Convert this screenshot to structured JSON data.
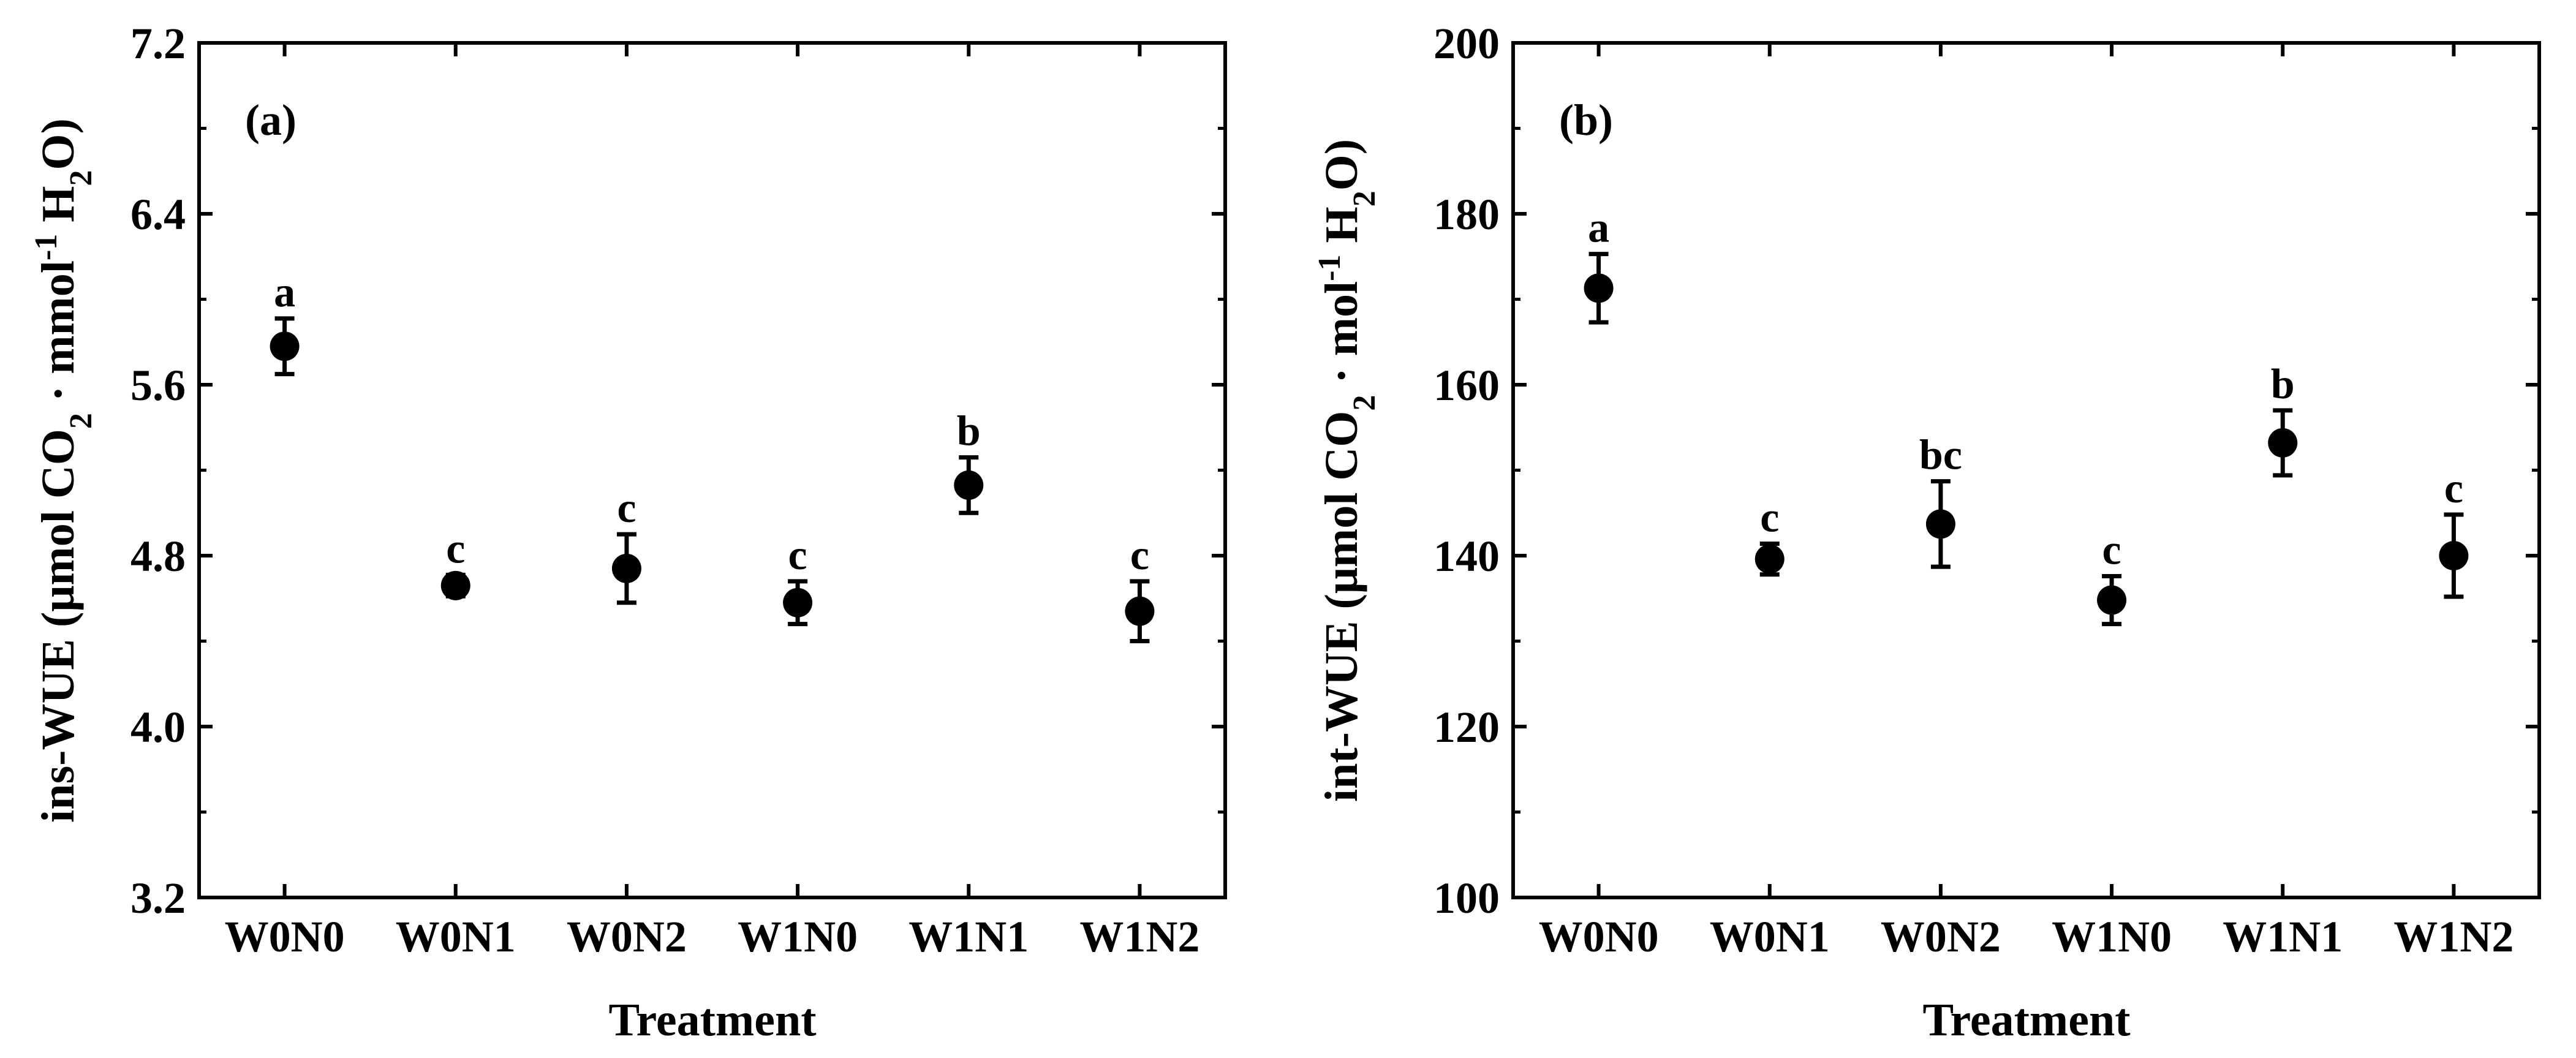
{
  "chart_data": [
    {
      "type": "scatter",
      "panel_label": "(a)",
      "xlabel": "Treatment",
      "ylabel_parts": [
        "ins-WUE (μmol CO",
        "2",
        " · mmol",
        "-1",
        " H",
        "2",
        "O)"
      ],
      "categories": [
        "W0N0",
        "W0N1",
        "W0N2",
        "W1N0",
        "W1N1",
        "W1N2"
      ],
      "values": [
        5.78,
        4.66,
        4.74,
        4.58,
        5.13,
        4.54
      ],
      "error": [
        0.13,
        0.05,
        0.16,
        0.1,
        0.13,
        0.14
      ],
      "significance": [
        "a",
        "c",
        "c",
        "c",
        "b",
        "c"
      ],
      "ylim": [
        3.2,
        7.2
      ],
      "yticks": [
        "3.2",
        "4.0",
        "4.8",
        "5.6",
        "6.4",
        "7.2"
      ],
      "grid": false,
      "marker_color": "#000000"
    },
    {
      "type": "scatter",
      "panel_label": "(b)",
      "xlabel": "Treatment",
      "ylabel_parts": [
        "int-WUE (μmol CO",
        "2",
        " · mol",
        "-1",
        " H",
        "2",
        "O)"
      ],
      "categories": [
        "W0N0",
        "W0N1",
        "W0N2",
        "W1N0",
        "W1N1",
        "W1N2"
      ],
      "values": [
        171.3,
        139.6,
        143.7,
        134.8,
        153.2,
        140.0
      ],
      "error": [
        4.0,
        1.8,
        5.0,
        2.8,
        3.8,
        4.8
      ],
      "significance": [
        "a",
        "c",
        "bc",
        "c",
        "b",
        "c"
      ],
      "ylim": [
        100,
        200
      ],
      "yticks": [
        "100",
        "120",
        "140",
        "160",
        "180",
        "200"
      ],
      "grid": false,
      "marker_color": "#000000"
    }
  ]
}
